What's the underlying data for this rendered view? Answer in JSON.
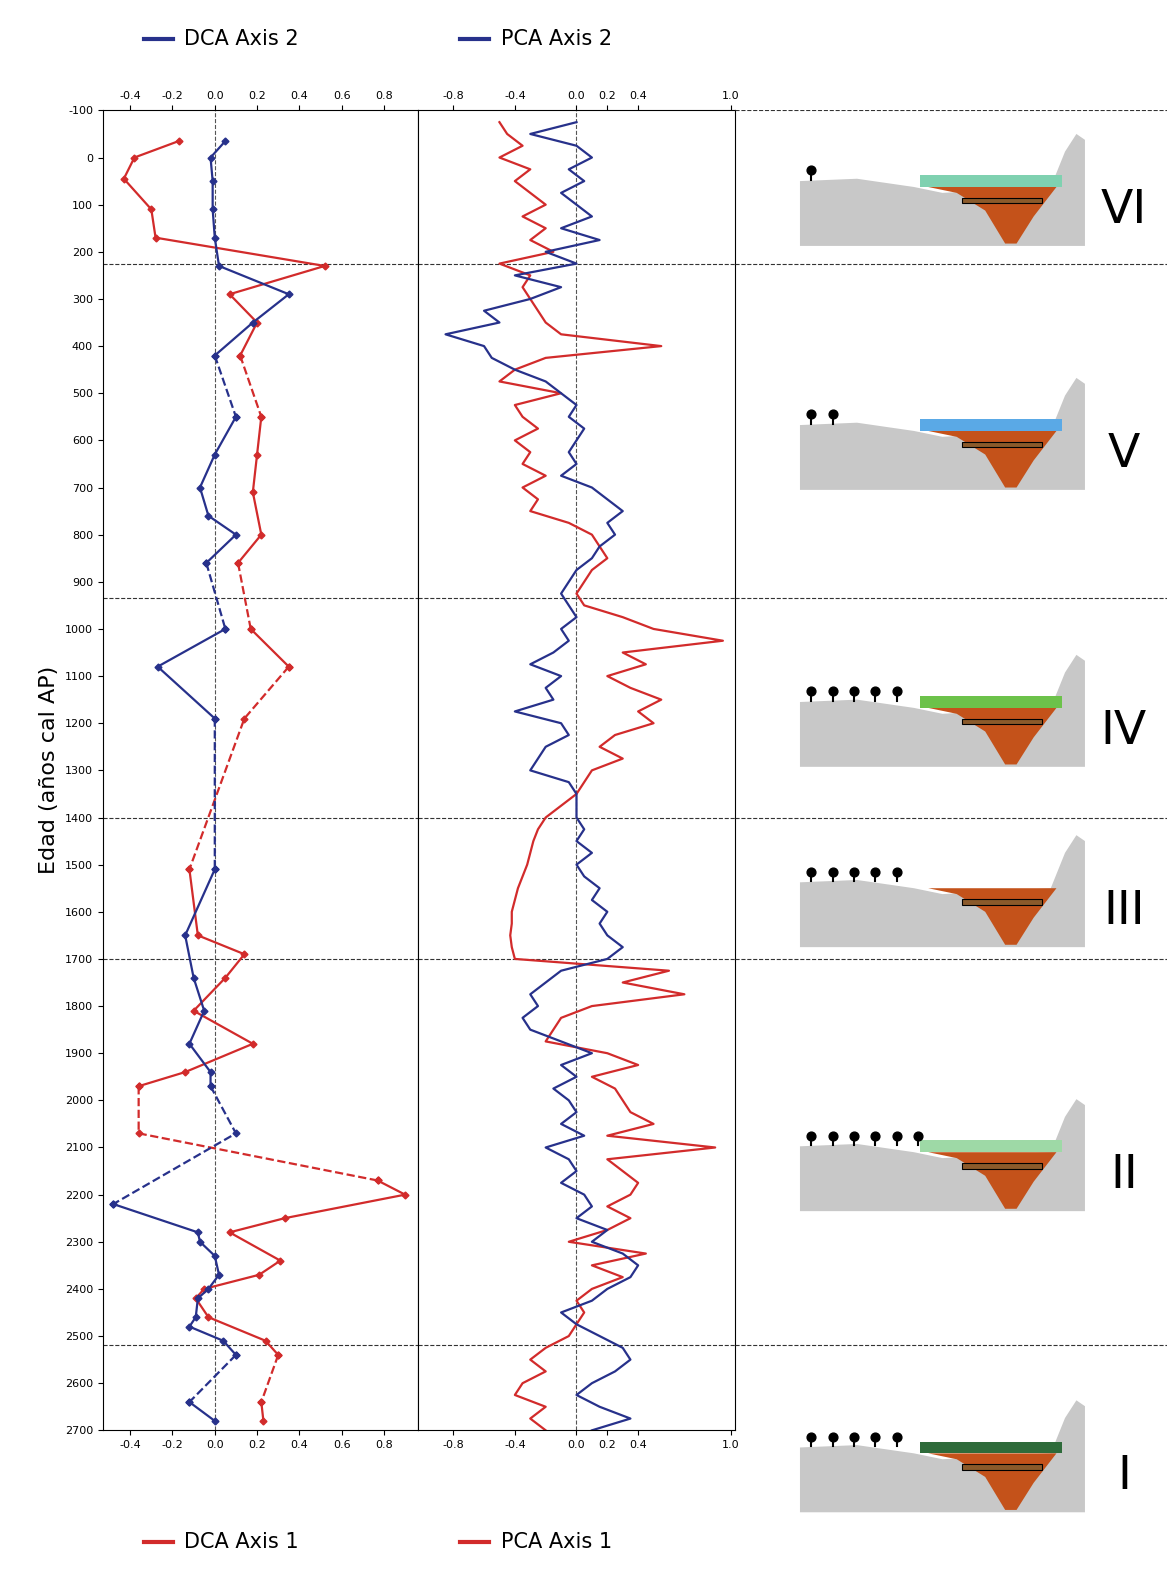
{
  "chart_data": [
    {
      "type": "line",
      "orientation": "horizontal",
      "y_label": "Edad (años cal AP)",
      "xlim": [
        -0.53,
        0.96
      ],
      "xticks": [
        -0.4,
        -0.2,
        {
          "value": 0,
          "label": "0.0"
        },
        0.2,
        0.4,
        0.6,
        0.8
      ],
      "ylim": [
        2700,
        -100
      ],
      "yticks": [
        -100,
        0,
        100,
        200,
        300,
        400,
        500,
        600,
        700,
        800,
        900,
        1000,
        1100,
        1200,
        1300,
        1400,
        1500,
        1600,
        1700,
        1800,
        1900,
        2000,
        2100,
        2200,
        2300,
        2400,
        2500,
        2600,
        2700
      ],
      "series": [
        {
          "name": "DCA Axis 1",
          "color": "#d22b2b",
          "marker": "diamond",
          "line_style": "solid",
          "y": [
            -35,
            0,
            45,
            110,
            170,
            230,
            290,
            350,
            420,
            null,
            550,
            630,
            710,
            800,
            860,
            null,
            1000,
            1080,
            null,
            1510,
            1650,
            1690,
            1740,
            1810,
            1880,
            1940,
            1970,
            null,
            2170,
            2200,
            2250,
            2280,
            2340,
            2370,
            2400,
            2420,
            2460,
            2510,
            2540,
            null,
            2640,
            2680
          ],
          "values": [
            -0.17,
            -0.38,
            -0.43,
            -0.3,
            -0.28,
            0.52,
            0.07,
            0.2,
            0.12,
            null,
            0.22,
            0.2,
            0.18,
            0.22,
            0.11,
            null,
            0.17,
            0.35,
            null,
            -0.12,
            -0.08,
            0.14,
            0.05,
            -0.1,
            0.18,
            -0.14,
            -0.36,
            null,
            0.77,
            0.9,
            0.33,
            0.07,
            0.31,
            0.21,
            -0.05,
            -0.09,
            -0.03,
            0.24,
            0.3,
            null,
            0.22,
            0.23
          ]
        },
        {
          "name": "DCA Axis 1",
          "color": "#d22b2b",
          "marker": "diamond",
          "line_style": "dashed",
          "y": [
            420,
            550,
            null,
            860,
            1000,
            null,
            1080,
            1190,
            1510,
            null,
            1970,
            2070,
            2170,
            null,
            2540,
            2640
          ],
          "values": [
            0.12,
            0.22,
            null,
            0.11,
            0.17,
            null,
            0.35,
            0.14,
            -0.12,
            null,
            -0.36,
            -0.36,
            0.77,
            null,
            0.3,
            0.22
          ]
        },
        {
          "name": "DCA Axis 2",
          "color": "#27318b",
          "marker": "diamond",
          "line_style": "solid",
          "y": [
            -35,
            0,
            50,
            110,
            170,
            230,
            290,
            350,
            420,
            null,
            550,
            630,
            700,
            760,
            800,
            860,
            null,
            1000,
            1080,
            1190,
            null,
            1510,
            1650,
            1740,
            1810,
            1880,
            1940,
            1970,
            null,
            2220,
            2280,
            2300,
            2330,
            2370,
            2400,
            2420,
            2460,
            2480,
            2510,
            2540,
            null,
            2640,
            2680
          ],
          "values": [
            0.05,
            -0.02,
            -0.01,
            -0.01,
            0.0,
            0.02,
            0.35,
            0.18,
            0.0,
            null,
            0.1,
            0.0,
            -0.07,
            -0.03,
            0.1,
            -0.04,
            null,
            0.05,
            -0.27,
            0.0,
            null,
            0.0,
            -0.14,
            -0.1,
            -0.05,
            -0.12,
            -0.02,
            -0.02,
            null,
            -0.48,
            -0.08,
            -0.07,
            0.0,
            0.02,
            -0.03,
            -0.08,
            -0.09,
            -0.12,
            0.04,
            0.1,
            null,
            -0.12,
            0.0
          ]
        },
        {
          "name": "DCA Axis 2",
          "color": "#27318b",
          "marker": "diamond",
          "line_style": "dashed",
          "y": [
            420,
            550,
            null,
            860,
            1000,
            null,
            1190,
            1510,
            null,
            1970,
            2070,
            2220,
            null,
            2540,
            2640
          ],
          "values": [
            0.0,
            0.1,
            null,
            -0.04,
            0.05,
            null,
            0.0,
            0.0,
            null,
            -0.02,
            0.1,
            -0.48,
            null,
            0.1,
            -0.12
          ]
        }
      ]
    },
    {
      "type": "line",
      "orientation": "horizontal",
      "tick_labels": "x",
      "xlim": [
        -1.03,
        1.03
      ],
      "xticks": [
        -0.8,
        -0.4,
        {
          "value": 0,
          "label": "0.0"
        },
        0.2,
        0.4,
        {
          "value": 1,
          "label": "1.0"
        }
      ],
      "ylim": [
        2700,
        -100
      ],
      "y": [
        -75,
        -50,
        -25,
        0,
        25,
        50,
        75,
        100,
        125,
        150,
        175,
        200,
        225,
        250,
        275,
        300,
        325,
        350,
        375,
        400,
        425,
        450,
        475,
        500,
        525,
        550,
        575,
        600,
        625,
        650,
        675,
        700,
        725,
        750,
        775,
        800,
        825,
        850,
        875,
        900,
        925,
        950,
        975,
        1000,
        1025,
        1050,
        1075,
        1100,
        1125,
        1150,
        1175,
        1200,
        1225,
        1250,
        1275,
        1300,
        1325,
        1350,
        1375,
        1400,
        1425,
        1450,
        1475,
        1500,
        1525,
        1550,
        1575,
        1600,
        1625,
        1650,
        1675,
        1700,
        1725,
        1750,
        1775,
        1800,
        1825,
        1850,
        1875,
        1900,
        1925,
        1950,
        1975,
        2000,
        2025,
        2050,
        2075,
        2100,
        2125,
        2150,
        2175,
        2200,
        2225,
        2250,
        2275,
        2300,
        2325,
        2350,
        2375,
        2400,
        2425,
        2450,
        2475,
        2500,
        2525,
        2550,
        2575,
        2600,
        2625,
        2650,
        2675,
        2700
      ],
      "series": [
        {
          "name": "PCA Axis 1",
          "color": "#d22b2b",
          "line_style": "solid",
          "values": [
            -0.5,
            -0.45,
            -0.35,
            -0.5,
            -0.3,
            -0.4,
            -0.3,
            -0.2,
            -0.35,
            -0.2,
            -0.3,
            -0.15,
            -0.5,
            -0.3,
            -0.35,
            -0.3,
            -0.25,
            -0.2,
            -0.1,
            0.55,
            -0.2,
            -0.4,
            -0.5,
            -0.1,
            -0.4,
            -0.35,
            -0.25,
            -0.4,
            -0.3,
            -0.35,
            -0.2,
            -0.35,
            -0.25,
            -0.3,
            -0.05,
            0.1,
            0.15,
            0.2,
            0.1,
            0.05,
            0.0,
            0.05,
            0.3,
            0.5,
            0.95,
            0.3,
            0.45,
            0.2,
            0.35,
            0.55,
            0.4,
            0.5,
            0.25,
            0.15,
            0.3,
            0.1,
            0.05,
            0.0,
            -0.1,
            -0.2,
            -0.25,
            -0.28,
            -0.3,
            -0.32,
            -0.35,
            -0.38,
            -0.4,
            -0.42,
            -0.42,
            -0.43,
            -0.42,
            -0.4,
            0.6,
            0.3,
            0.7,
            0.1,
            -0.1,
            -0.15,
            -0.2,
            0.2,
            0.4,
            0.1,
            0.25,
            0.3,
            0.35,
            0.5,
            0.2,
            0.9,
            0.2,
            0.3,
            0.4,
            0.35,
            0.2,
            0.35,
            0.2,
            -0.05,
            0.45,
            0.1,
            0.3,
            0.1,
            0.0,
            0.05,
            0.0,
            -0.05,
            -0.2,
            -0.3,
            -0.2,
            -0.35,
            -0.4,
            -0.2,
            -0.3,
            -0.2
          ]
        },
        {
          "name": "PCA Axis 2",
          "color": "#27318b",
          "line_style": "solid",
          "values": [
            0.0,
            -0.3,
            0.0,
            0.1,
            -0.05,
            0.05,
            -0.1,
            0.0,
            0.1,
            -0.1,
            0.15,
            -0.2,
            0.0,
            -0.4,
            -0.1,
            -0.3,
            -0.6,
            -0.5,
            -0.85,
            -0.6,
            -0.55,
            -0.4,
            -0.2,
            -0.1,
            0.0,
            -0.05,
            0.05,
            0.0,
            -0.05,
            0.0,
            -0.1,
            0.1,
            0.2,
            0.3,
            0.2,
            0.25,
            0.15,
            0.1,
            0.0,
            -0.05,
            -0.1,
            -0.05,
            0.0,
            -0.1,
            -0.05,
            -0.15,
            -0.3,
            -0.1,
            -0.2,
            -0.15,
            -0.4,
            -0.1,
            -0.05,
            -0.2,
            -0.25,
            -0.3,
            -0.05,
            0.0,
            0.0,
            0.0,
            0.05,
            0.0,
            0.1,
            0.0,
            0.05,
            0.15,
            0.1,
            0.2,
            0.15,
            0.2,
            0.3,
            0.2,
            -0.1,
            -0.2,
            -0.3,
            -0.25,
            -0.35,
            -0.3,
            -0.1,
            0.1,
            -0.1,
            0.0,
            -0.15,
            -0.05,
            0.0,
            -0.1,
            0.05,
            -0.2,
            -0.05,
            0.0,
            -0.1,
            0.05,
            0.1,
            0.0,
            0.2,
            0.1,
            0.3,
            0.4,
            0.35,
            0.2,
            0.1,
            -0.1,
            0.0,
            0.15,
            0.3,
            0.35,
            0.25,
            0.1,
            0.0,
            0.15,
            0.35,
            0.1
          ]
        }
      ]
    }
  ],
  "zones": {
    "boundaries": [
      225,
      935,
      1400,
      1700,
      2520
    ],
    "labels": [
      "VI",
      "V",
      "IV",
      "III",
      "II",
      "I"
    ]
  }
}
